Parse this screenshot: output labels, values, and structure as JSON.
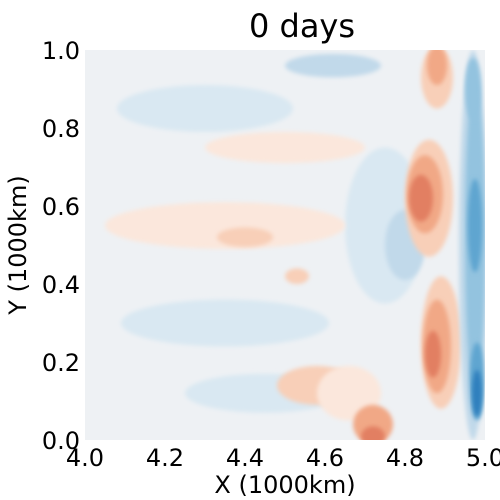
{
  "chart_data": {
    "type": "heatmap",
    "subtype": "filled-contour",
    "title": "0 days",
    "xlabel": "X (1000km)",
    "ylabel": "Y (1000km)",
    "xlim": [
      4.0,
      5.0
    ],
    "ylim": [
      0.0,
      1.0
    ],
    "xticks": [
      "4.0",
      "4.2",
      "4.4",
      "4.6",
      "4.8",
      "5.0"
    ],
    "yticks": [
      "0.0",
      "0.2",
      "0.4",
      "0.6",
      "0.8",
      "1.0"
    ],
    "grid": false,
    "colormap": "RdBu_r",
    "colors": {
      "background": "#eef1f4",
      "neg_1": "#d9e8f2",
      "neg_2": "#c1d9ea",
      "neg_3": "#93c3df",
      "neg_4": "#5ea5d0",
      "neg_5": "#2f7fbd",
      "pos_1": "#fbe7dc",
      "pos_2": "#f8cfb8",
      "pos_3": "#f1a886",
      "pos_4": "#e27f62",
      "pos_5": "#c84c45"
    },
    "regions": [
      {
        "sign": "neg",
        "level": 1,
        "cx": 4.35,
        "cy": 0.3,
        "rx": 0.26,
        "ry": 0.06
      },
      {
        "sign": "neg",
        "level": 1,
        "cx": 4.3,
        "cy": 0.85,
        "rx": 0.22,
        "ry": 0.06
      },
      {
        "sign": "neg",
        "level": 1,
        "cx": 4.45,
        "cy": 0.12,
        "rx": 0.2,
        "ry": 0.05
      },
      {
        "sign": "neg",
        "level": 1,
        "cx": 4.75,
        "cy": 0.55,
        "rx": 0.1,
        "ry": 0.2
      },
      {
        "sign": "neg",
        "level": 2,
        "cx": 4.62,
        "cy": 0.96,
        "rx": 0.12,
        "ry": 0.03
      },
      {
        "sign": "neg",
        "level": 2,
        "cx": 4.8,
        "cy": 0.5,
        "rx": 0.05,
        "ry": 0.09
      },
      {
        "sign": "pos",
        "level": 1,
        "cx": 4.35,
        "cy": 0.55,
        "rx": 0.3,
        "ry": 0.06
      },
      {
        "sign": "pos",
        "level": 1,
        "cx": 4.5,
        "cy": 0.75,
        "rx": 0.2,
        "ry": 0.04
      },
      {
        "sign": "pos",
        "level": 2,
        "cx": 4.4,
        "cy": 0.52,
        "rx": 0.07,
        "ry": 0.025
      },
      {
        "sign": "pos",
        "level": 2,
        "cx": 4.53,
        "cy": 0.42,
        "rx": 0.03,
        "ry": 0.02
      },
      {
        "sign": "pos",
        "level": 2,
        "cx": 4.58,
        "cy": 0.14,
        "rx": 0.1,
        "ry": 0.05
      },
      {
        "sign": "pos",
        "level": 1,
        "cx": 4.66,
        "cy": 0.12,
        "rx": 0.08,
        "ry": 0.07
      },
      {
        "sign": "pos",
        "level": 3,
        "cx": 4.72,
        "cy": 0.04,
        "rx": 0.05,
        "ry": 0.05
      },
      {
        "sign": "pos",
        "level": 4,
        "cx": 4.72,
        "cy": 0.01,
        "rx": 0.03,
        "ry": 0.025
      },
      {
        "sign": "pos",
        "level": 2,
        "cx": 4.86,
        "cy": 0.62,
        "rx": 0.06,
        "ry": 0.15
      },
      {
        "sign": "pos",
        "level": 3,
        "cx": 4.85,
        "cy": 0.63,
        "rx": 0.045,
        "ry": 0.1
      },
      {
        "sign": "pos",
        "level": 4,
        "cx": 4.84,
        "cy": 0.62,
        "rx": 0.03,
        "ry": 0.06
      },
      {
        "sign": "pos",
        "level": 2,
        "cx": 4.89,
        "cy": 0.25,
        "rx": 0.05,
        "ry": 0.17
      },
      {
        "sign": "pos",
        "level": 3,
        "cx": 4.88,
        "cy": 0.24,
        "rx": 0.035,
        "ry": 0.12
      },
      {
        "sign": "pos",
        "level": 4,
        "cx": 4.87,
        "cy": 0.22,
        "rx": 0.02,
        "ry": 0.06
      },
      {
        "sign": "pos",
        "level": 2,
        "cx": 4.88,
        "cy": 0.93,
        "rx": 0.04,
        "ry": 0.08
      },
      {
        "sign": "pos",
        "level": 3,
        "cx": 4.88,
        "cy": 0.96,
        "rx": 0.025,
        "ry": 0.05
      },
      {
        "sign": "neg",
        "level": 2,
        "cx": 4.97,
        "cy": 0.5,
        "rx": 0.035,
        "ry": 0.5
      },
      {
        "sign": "neg",
        "level": 3,
        "cx": 4.975,
        "cy": 0.52,
        "rx": 0.025,
        "ry": 0.4
      },
      {
        "sign": "neg",
        "level": 4,
        "cx": 4.975,
        "cy": 0.55,
        "rx": 0.018,
        "ry": 0.12
      },
      {
        "sign": "neg",
        "level": 4,
        "cx": 4.98,
        "cy": 0.15,
        "rx": 0.018,
        "ry": 0.1
      },
      {
        "sign": "neg",
        "level": 5,
        "cx": 4.98,
        "cy": 0.12,
        "rx": 0.012,
        "ry": 0.06
      },
      {
        "sign": "neg",
        "level": 3,
        "cx": 4.97,
        "cy": 0.9,
        "rx": 0.02,
        "ry": 0.08
      }
    ]
  }
}
